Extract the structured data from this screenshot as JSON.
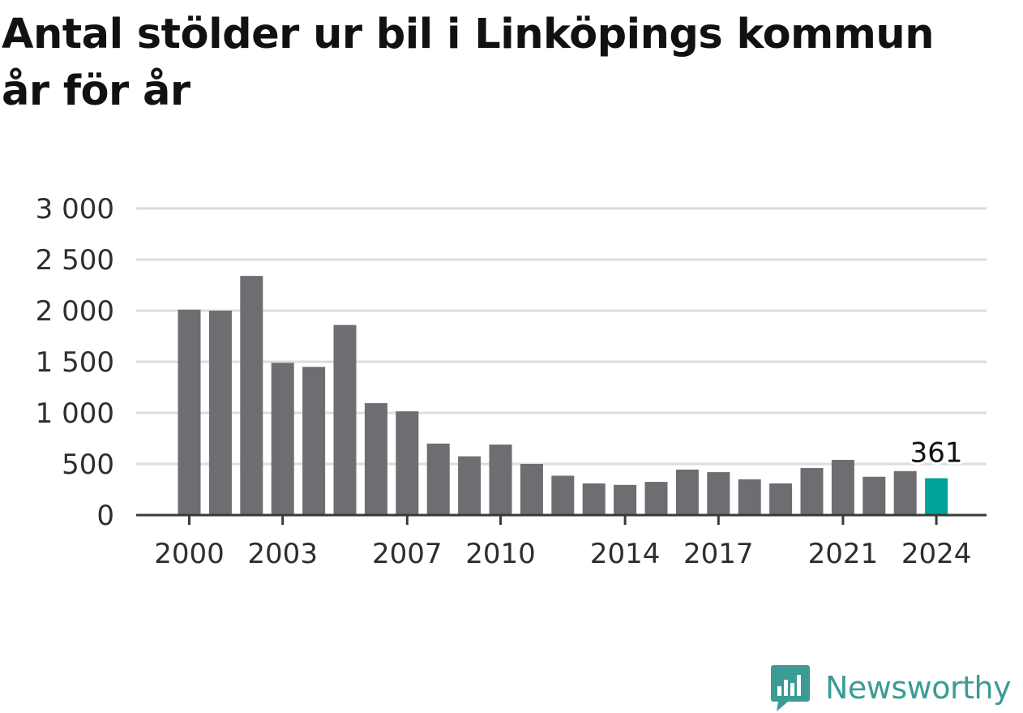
{
  "chart_data": {
    "type": "bar",
    "title": "Antal stölder ur bil i Linköpings kommun år för år",
    "xlabel": "",
    "ylabel": "",
    "ylim": [
      0,
      3000
    ],
    "yticks": [
      0,
      500,
      1000,
      1500,
      2000,
      2500,
      3000
    ],
    "ytick_labels": [
      "0",
      "500",
      "1 000",
      "1 500",
      "2 000",
      "2 500",
      "3 000"
    ],
    "xtick_labels": [
      "2000",
      "2003",
      "2007",
      "2010",
      "2014",
      "2017",
      "2021",
      "2024"
    ],
    "categories": [
      "2000",
      "2001",
      "2002",
      "2003",
      "2004",
      "2005",
      "2006",
      "2007",
      "2008",
      "2009",
      "2010",
      "2011",
      "2012",
      "2013",
      "2014",
      "2015",
      "2016",
      "2017",
      "2018",
      "2019",
      "2020",
      "2021",
      "2022",
      "2023",
      "2024"
    ],
    "values": [
      2010,
      2000,
      2340,
      1490,
      1450,
      1860,
      1095,
      1015,
      700,
      575,
      690,
      500,
      385,
      310,
      295,
      325,
      445,
      420,
      350,
      310,
      460,
      540,
      375,
      430,
      361
    ],
    "highlight_index": 24,
    "highlight_label": "361",
    "grid": true,
    "colors": {
      "bar": "#6e6d72",
      "highlight": "#00a29a",
      "grid": "#dcdcdc",
      "axis": "#3a3a3a",
      "tick_text": "#2e2e2e"
    }
  },
  "brand": {
    "name": "Newsworthy",
    "icon": "newsworthy-logo-icon",
    "color": "#3a9c95"
  }
}
